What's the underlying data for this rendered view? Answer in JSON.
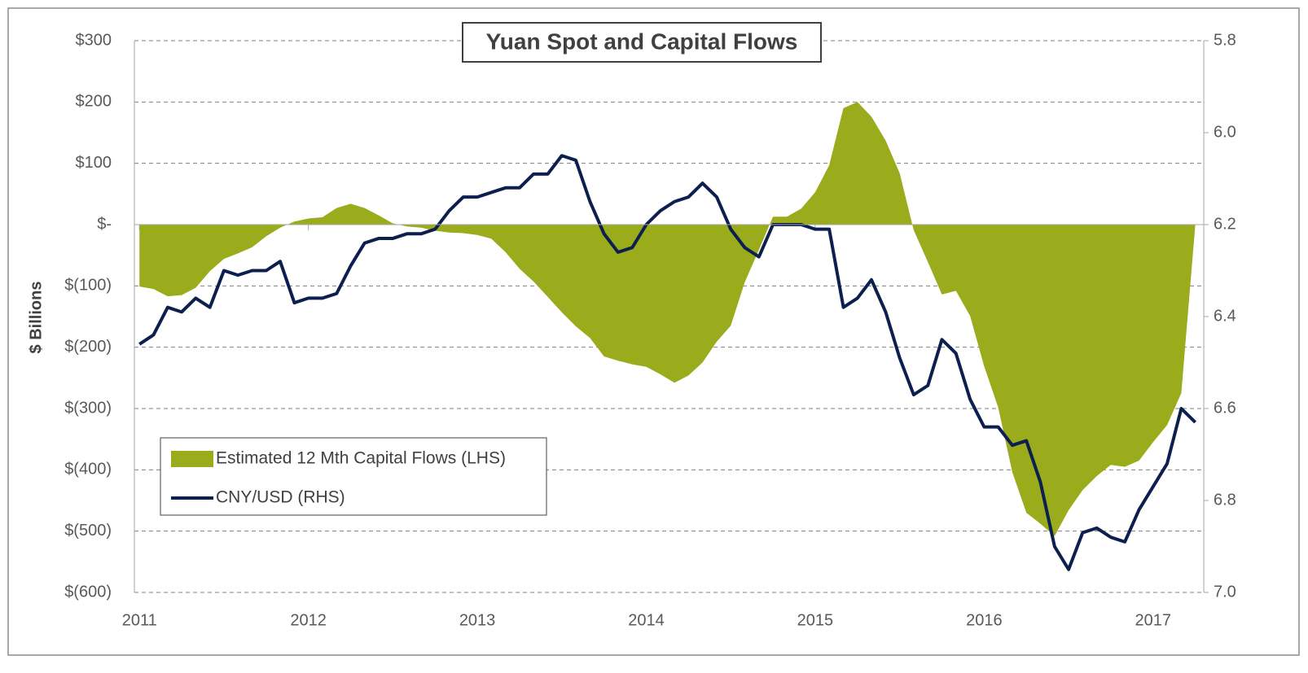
{
  "chart_data": {
    "type": "line",
    "title": "Yuan Spot and Capital Flows",
    "ylabel": "$ Billions",
    "x": [
      2011,
      2011.083,
      2011.167,
      2011.25,
      2011.333,
      2011.417,
      2011.5,
      2011.583,
      2011.667,
      2011.75,
      2011.833,
      2011.917,
      2012,
      2012.083,
      2012.167,
      2012.25,
      2012.333,
      2012.417,
      2012.5,
      2012.583,
      2012.667,
      2012.75,
      2012.833,
      2012.917,
      2013,
      2013.083,
      2013.167,
      2013.25,
      2013.333,
      2013.417,
      2013.5,
      2013.583,
      2013.667,
      2013.75,
      2013.833,
      2013.917,
      2014,
      2014.083,
      2014.167,
      2014.25,
      2014.333,
      2014.417,
      2014.5,
      2014.583,
      2014.667,
      2014.75,
      2014.833,
      2014.917,
      2015,
      2015.083,
      2015.167,
      2015.25,
      2015.333,
      2015.417,
      2015.5,
      2015.583,
      2015.667,
      2015.75,
      2015.833,
      2015.917,
      2016,
      2016.083,
      2016.167,
      2016.25,
      2016.333,
      2016.417,
      2016.5,
      2016.583,
      2016.667,
      2016.75,
      2016.833,
      2016.917,
      2017,
      2017.083,
      2017.167,
      2017.25
    ],
    "series": [
      {
        "name": "Estimated 12 Mth Capital Flows (LHS)",
        "type": "area",
        "color": "#9aab1c",
        "values": [
          -101,
          -105,
          -117,
          -115,
          -103,
          -76,
          -56,
          -47,
          -37,
          -19,
          -5,
          5,
          10,
          12,
          27,
          34,
          27,
          15,
          2,
          -3,
          -5,
          -10,
          -13,
          -14,
          -17,
          -23,
          -45,
          -72,
          -93,
          -118,
          -143,
          -166,
          -185,
          -215,
          -222,
          -228,
          -232,
          -244,
          -258,
          -246,
          -225,
          -191,
          -165,
          -94,
          -41,
          13,
          13,
          26,
          53,
          97,
          190,
          200,
          176,
          137,
          84,
          -9,
          -61,
          -114,
          -108,
          -149,
          -231,
          -298,
          -404,
          -470,
          -488,
          -508,
          -466,
          -433,
          -410,
          -392,
          -395,
          -385,
          -355,
          -327,
          -275,
          0
        ]
      },
      {
        "name": "CNY/USD (RHS)",
        "type": "line",
        "axis": "y2",
        "color": "#0d1f4f",
        "values": [
          6.46,
          6.44,
          6.38,
          6.39,
          6.36,
          6.38,
          6.3,
          6.31,
          6.3,
          6.3,
          6.28,
          6.37,
          6.36,
          6.36,
          6.35,
          6.29,
          6.24,
          6.23,
          6.23,
          6.22,
          6.22,
          6.21,
          6.17,
          6.14,
          6.14,
          6.13,
          6.12,
          6.12,
          6.09,
          6.09,
          6.05,
          6.06,
          6.15,
          6.22,
          6.26,
          6.25,
          6.2,
          6.17,
          6.15,
          6.14,
          6.11,
          6.14,
          6.21,
          6.25,
          6.27,
          6.2,
          6.2,
          6.2,
          6.21,
          6.21,
          6.38,
          6.36,
          6.32,
          6.39,
          6.49,
          6.57,
          6.55,
          6.45,
          6.48,
          6.58,
          6.64,
          6.64,
          6.68,
          6.67,
          6.76,
          6.9,
          6.95,
          6.87,
          6.86,
          6.88,
          6.89,
          6.82,
          6.77,
          6.72,
          6.6,
          6.63
        ]
      }
    ],
    "xlim": [
      2010.97,
      2017.3
    ],
    "xticks": [
      2011,
      2012,
      2013,
      2014,
      2015,
      2016,
      2017
    ],
    "ylim": [
      -600,
      300
    ],
    "yticks": [
      {
        "value": 300,
        "label": "$300"
      },
      {
        "value": 200,
        "label": "$200"
      },
      {
        "value": 100,
        "label": "$100"
      },
      {
        "value": 0,
        "label": "$-"
      },
      {
        "value": -100,
        "label": "$(100)"
      },
      {
        "value": -200,
        "label": "$(200)"
      },
      {
        "value": -300,
        "label": "$(300)"
      },
      {
        "value": -400,
        "label": "$(400)"
      },
      {
        "value": -500,
        "label": "$(500)"
      },
      {
        "value": -600,
        "label": "$(600)"
      }
    ],
    "y2lim": [
      7.0,
      5.8
    ],
    "y2ticks": [
      5.8,
      {
        "value": 6,
        "label": "6.0"
      },
      6.2,
      6.4,
      6.6,
      6.8,
      {
        "value": 7,
        "label": "7.0"
      }
    ],
    "grid": true,
    "legend": "lower left"
  }
}
